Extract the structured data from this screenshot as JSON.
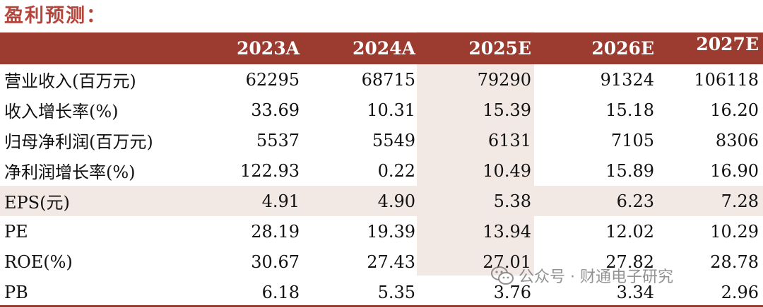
{
  "title": "盈利预测：",
  "table": {
    "columns": [
      "",
      "2023A",
      "2024A",
      "2025E",
      "2026E",
      "2027E"
    ],
    "rows": [
      {
        "label": "营业收入(百万元)",
        "values": [
          "62295",
          "68715",
          "79290",
          "91324",
          "106118"
        ]
      },
      {
        "label": "收入增长率(%)",
        "values": [
          "33.69",
          "10.31",
          "15.39",
          "15.18",
          "16.20"
        ]
      },
      {
        "label": "归母净利润(百万元)",
        "values": [
          "5537",
          "5549",
          "6131",
          "7105",
          "8306"
        ]
      },
      {
        "label": "净利润增长率(%)",
        "values": [
          "122.93",
          "0.22",
          "10.49",
          "15.89",
          "16.90"
        ]
      },
      {
        "label": "EPS(元)",
        "values": [
          "4.91",
          "4.90",
          "5.38",
          "6.23",
          "7.28"
        ]
      },
      {
        "label": "PE",
        "values": [
          "28.19",
          "19.39",
          "13.94",
          "12.02",
          "10.29"
        ]
      },
      {
        "label": "ROE(%)",
        "values": [
          "30.67",
          "27.43",
          "27.01",
          "27.82",
          "28.78"
        ]
      },
      {
        "label": "PB",
        "values": [
          "6.18",
          "5.35",
          "3.76",
          "3.34",
          "2.96"
        ]
      }
    ]
  },
  "watermark": {
    "text": "公众号 · 财通电子研究",
    "icon": "wechat-icon"
  },
  "colors": {
    "header_bg": "#9c3b30",
    "title": "#b5443a",
    "highlight": "#f2e8e4"
  }
}
